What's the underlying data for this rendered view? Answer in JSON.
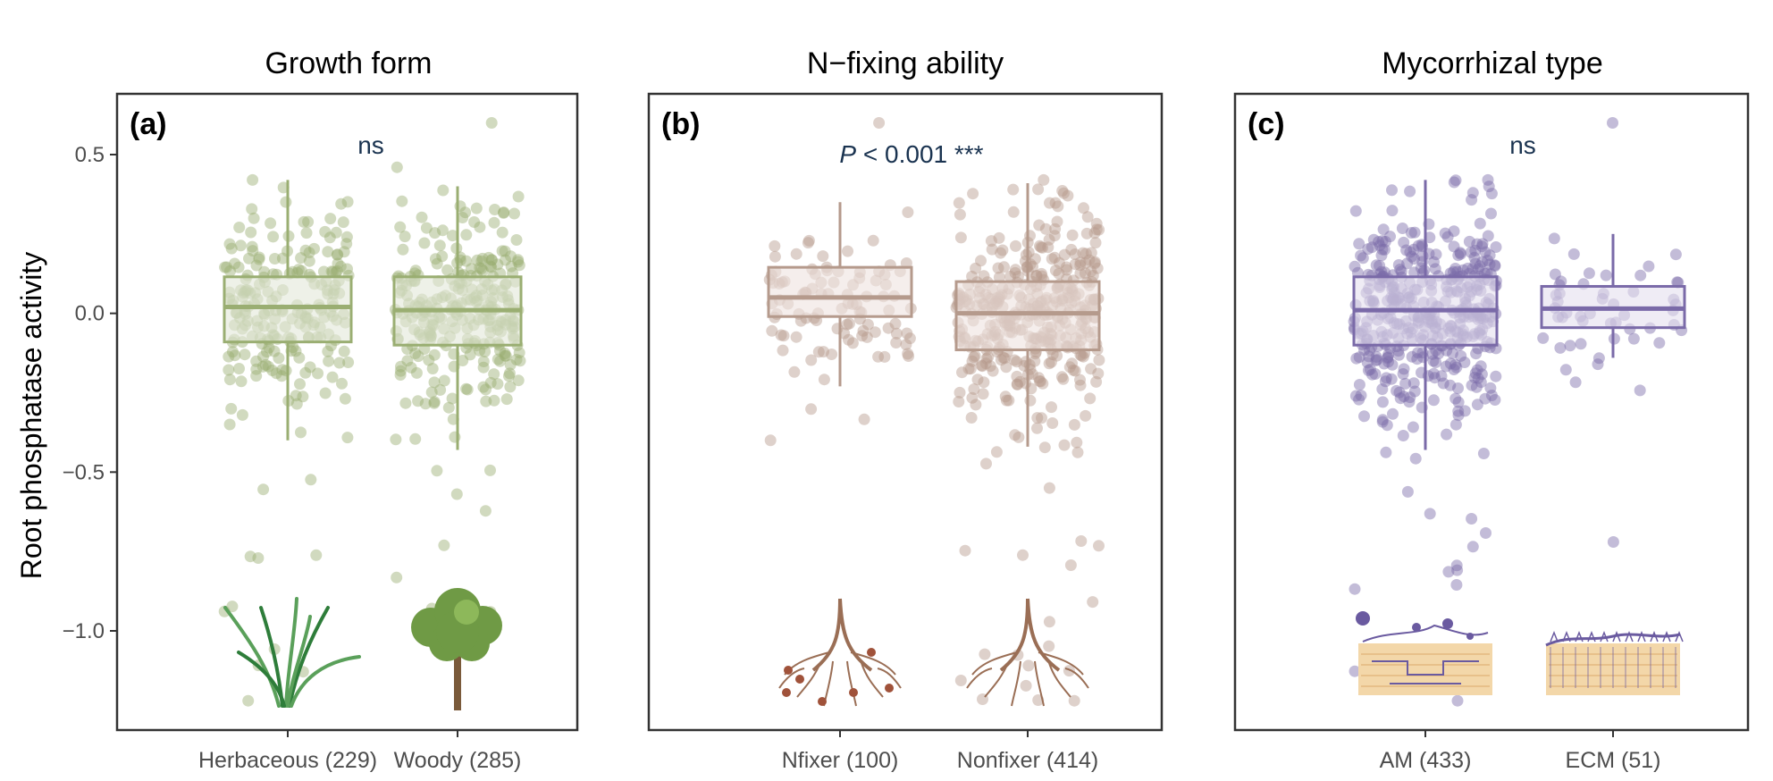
{
  "chart_data": {
    "type": "box",
    "ylabel": "Root phosphatase activity",
    "ylim": [
      -1.3,
      0.68
    ],
    "yticks": [
      {
        "value": 0.5,
        "label": "0.5"
      },
      {
        "value": 0.0,
        "label": "0.0"
      },
      {
        "value": -0.5,
        "label": "−0.5"
      },
      {
        "value": -1.0,
        "label": "−1.0"
      }
    ],
    "panels": [
      {
        "id": "a",
        "label": "(a)",
        "title": "Growth form",
        "significance": "ns",
        "color": "#9aae72",
        "fill": "#e3e8d8",
        "icons": [
          "grass-icon",
          "tree-icon"
        ],
        "groups": [
          {
            "label": "Herbaceous (229)",
            "n": 229,
            "q1": -0.09,
            "median": 0.02,
            "q3": 0.115,
            "whisker_low": -0.4,
            "whisker_high": 0.42,
            "min": -1.22,
            "max": 0.42
          },
          {
            "label": "Woody (285)",
            "n": 285,
            "q1": -0.1,
            "median": 0.01,
            "q3": 0.115,
            "whisker_low": -0.43,
            "whisker_high": 0.4,
            "min": -0.94,
            "max": 0.6
          }
        ]
      },
      {
        "id": "b",
        "label": "(b)",
        "title": "N−fixing ability",
        "significance_italic": "P",
        "significance": " < 0.001 ***",
        "color": "#b59a8c",
        "fill": "#eee3df",
        "icons": [
          "nodulated-root-icon",
          "root-icon"
        ],
        "groups": [
          {
            "label": "Nfixer (100)",
            "n": 100,
            "q1": -0.01,
            "median": 0.05,
            "q3": 0.145,
            "whisker_low": -0.23,
            "whisker_high": 0.35,
            "min": -0.4,
            "max": 0.6
          },
          {
            "label": "Nonfixer (414)",
            "n": 414,
            "q1": -0.115,
            "median": 0.0,
            "q3": 0.1,
            "whisker_low": -0.42,
            "whisker_high": 0.41,
            "min": -1.22,
            "max": 0.42
          }
        ]
      },
      {
        "id": "c",
        "label": "(c)",
        "title": "Mycorrhizal type",
        "significance": "ns",
        "color": "#7a6aa8",
        "fill": "#e4e0ef",
        "icons": [
          "am-fungi-icon",
          "ecm-fungi-icon"
        ],
        "groups": [
          {
            "label": "AM (433)",
            "n": 433,
            "q1": -0.1,
            "median": 0.01,
            "q3": 0.115,
            "whisker_low": -0.43,
            "whisker_high": 0.42,
            "min": -1.22,
            "max": 0.42
          },
          {
            "label": "ECM (51)",
            "n": 51,
            "q1": -0.045,
            "median": 0.015,
            "q3": 0.085,
            "whisker_low": -0.14,
            "whisker_high": 0.25,
            "min": -0.72,
            "max": 0.6
          }
        ]
      }
    ]
  }
}
